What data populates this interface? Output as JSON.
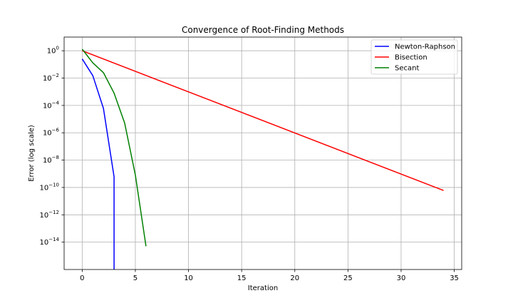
{
  "chart_data": {
    "type": "line",
    "title": "Convergence of Root-Finding Methods",
    "xlabel": "Iteration",
    "ylabel": "Error (log scale)",
    "yscale": "log",
    "xlim": [
      -1.7,
      35.7
    ],
    "ylim": [
      1e-16,
      10
    ],
    "grid": true,
    "legend_position": "top-right",
    "x_ticks": [
      {
        "value": 0,
        "label": "0"
      },
      {
        "value": 5,
        "label": "5"
      },
      {
        "value": 10,
        "label": "10"
      },
      {
        "value": 15,
        "label": "15"
      },
      {
        "value": 20,
        "label": "20"
      },
      {
        "value": 25,
        "label": "25"
      },
      {
        "value": 30,
        "label": "30"
      },
      {
        "value": 35,
        "label": "35"
      }
    ],
    "y_ticks": [
      {
        "value": 1,
        "base": "10",
        "exp": "0"
      },
      {
        "value": 0.01,
        "base": "10",
        "exp": "−2"
      },
      {
        "value": 0.0001,
        "base": "10",
        "exp": "−4"
      },
      {
        "value": 1e-06,
        "base": "10",
        "exp": "−6"
      },
      {
        "value": 1e-08,
        "base": "10",
        "exp": "−8"
      },
      {
        "value": 1e-10,
        "base": "10",
        "exp": "−10"
      },
      {
        "value": 1e-12,
        "base": "10",
        "exp": "−12"
      },
      {
        "value": 1e-14,
        "base": "10",
        "exp": "−14"
      }
    ],
    "series": [
      {
        "name": "Newton-Raphson",
        "color": "#0000ff",
        "x": [
          0,
          1,
          2,
          3,
          3
        ],
        "y": [
          0.25,
          0.015,
          6e-05,
          6e-10,
          1e-16
        ]
      },
      {
        "name": "Bisection",
        "color": "#ff0000",
        "x": [
          0,
          34
        ],
        "y": [
          1.0,
          6e-11
        ]
      },
      {
        "name": "Secant",
        "color": "#008000",
        "x": [
          0,
          1,
          2,
          3,
          4,
          5,
          6
        ],
        "y": [
          1.3,
          0.13,
          0.025,
          0.0008,
          5e-06,
          8e-10,
          5e-15
        ]
      }
    ]
  }
}
